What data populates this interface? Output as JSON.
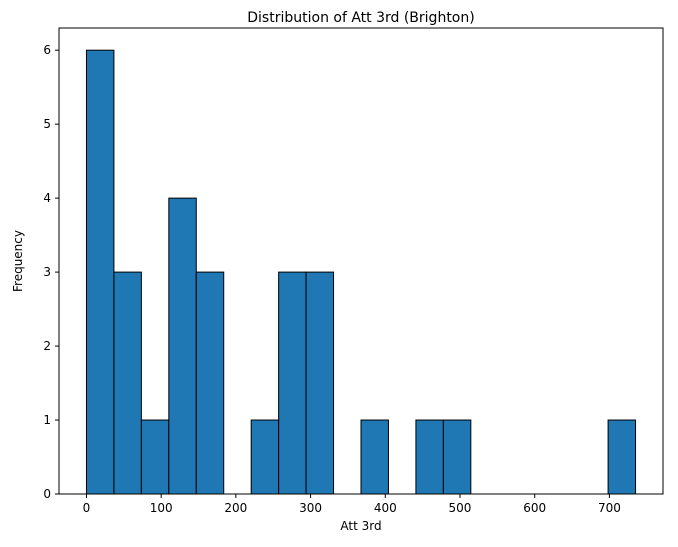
{
  "chart_data": {
    "type": "bar",
    "title": "Distribution of Att 3rd (Brighton)",
    "xlabel": "Att 3rd",
    "ylabel": "Frequency",
    "bin_edges": [
      0,
      36.75,
      73.5,
      110.25,
      147,
      183.75,
      220.5,
      257.25,
      294,
      330.75,
      367.5,
      404.25,
      441,
      477.75,
      514.5,
      551.25,
      588,
      624.75,
      661.5,
      698.25,
      735
    ],
    "values": [
      6,
      3,
      1,
      4,
      3,
      0,
      1,
      3,
      3,
      0,
      1,
      0,
      1,
      1,
      0,
      0,
      0,
      0,
      0,
      1
    ],
    "xlim": [
      -36.75,
      771.75
    ],
    "ylim": [
      0,
      6.3
    ],
    "xticks": [
      0,
      100,
      200,
      300,
      400,
      500,
      600,
      700
    ],
    "yticks": [
      0,
      1,
      2,
      3,
      4,
      5,
      6
    ],
    "colors": {
      "bar": "#1f77b4",
      "edge": "#000000"
    },
    "grid": false,
    "legend": "none"
  }
}
